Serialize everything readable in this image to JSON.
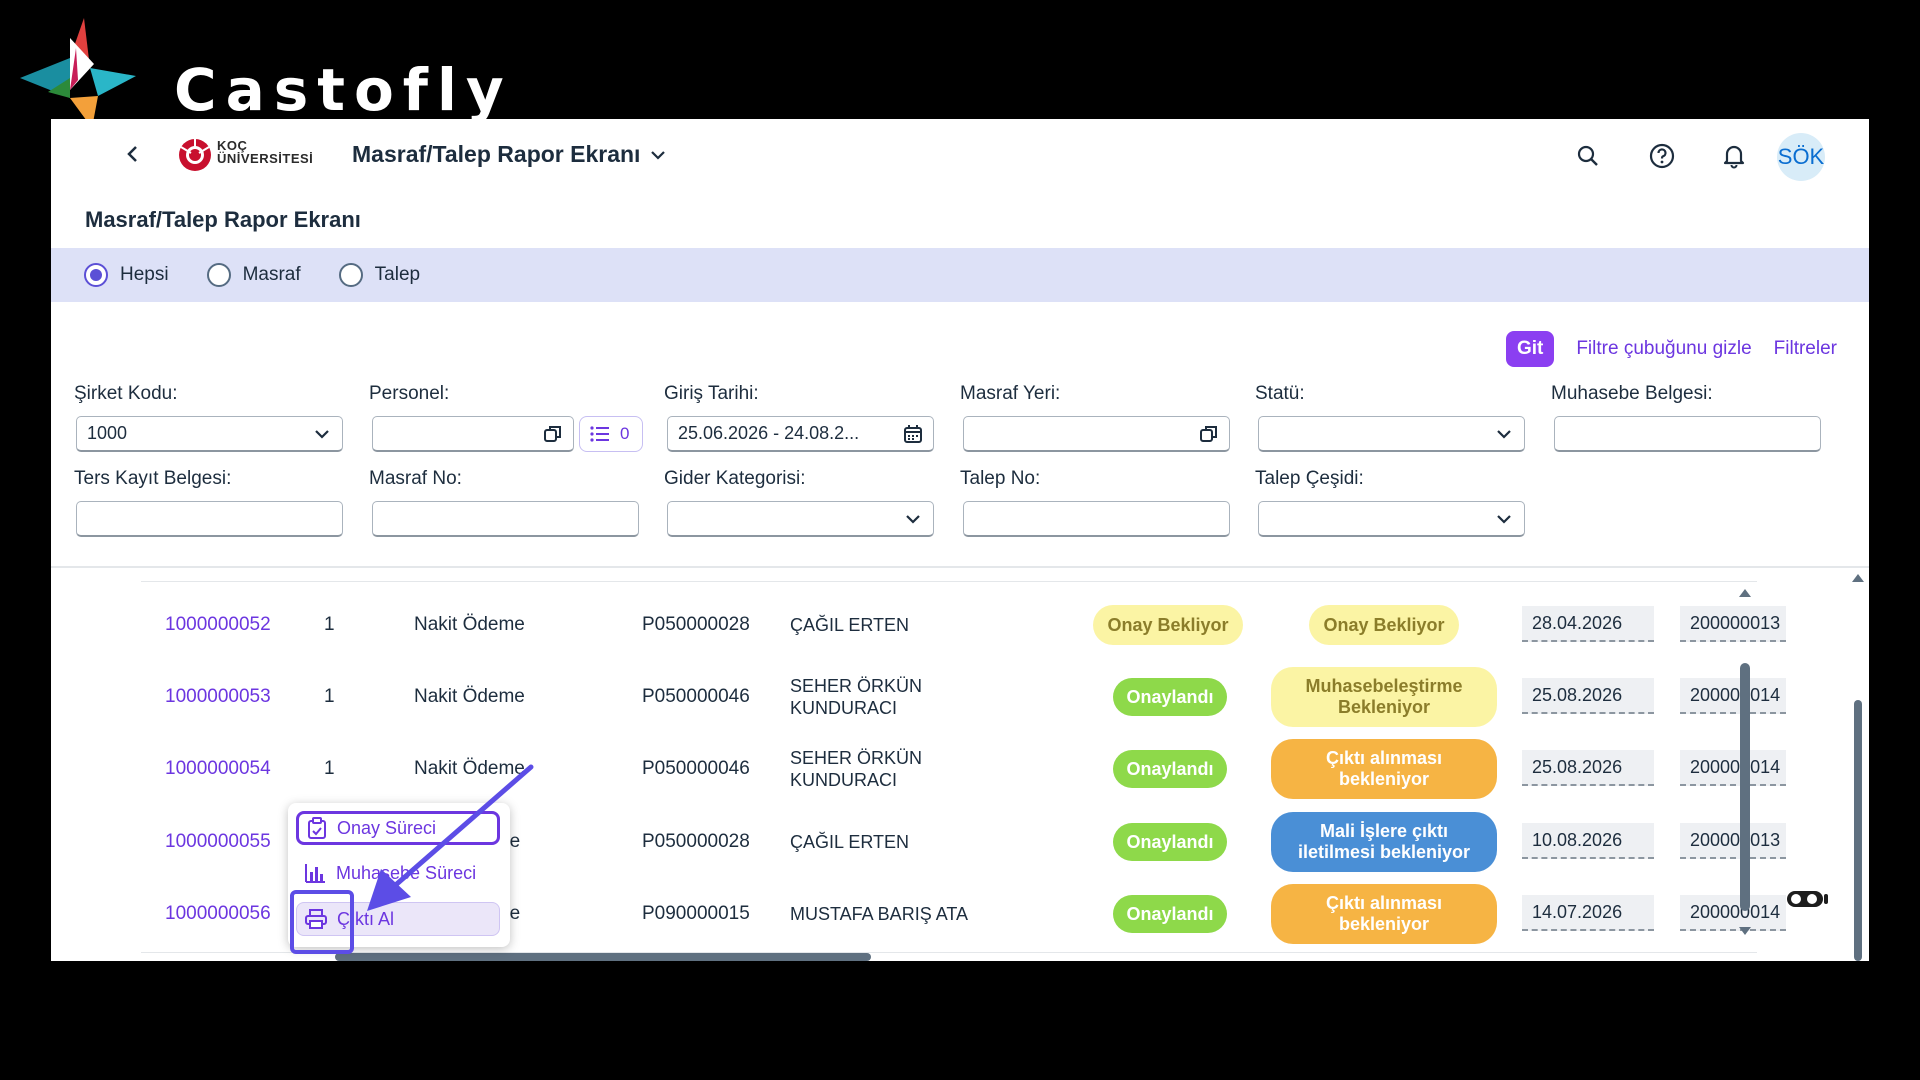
{
  "brand": {
    "name": "Castofly"
  },
  "shell": {
    "logo_line1": "KOÇ",
    "logo_line2": "ÜNİVERSİTESİ",
    "app_title": "Masraf/Talep Rapor Ekranı",
    "avatar": "SÖK"
  },
  "page": {
    "title": "Masraf/Talep Rapor Ekranı"
  },
  "radios": [
    {
      "label": "Hepsi",
      "selected": true
    },
    {
      "label": "Masraf",
      "selected": false
    },
    {
      "label": "Talep",
      "selected": false
    }
  ],
  "filter_actions": {
    "go": "Git",
    "hide": "Filtre çubuğunu gizle",
    "filters": "Filtreler"
  },
  "filters": {
    "company_code": {
      "label": "Şirket Kodu:",
      "value": "1000"
    },
    "personnel": {
      "label": "Personel:",
      "value": "",
      "token_count": "0"
    },
    "entry_date": {
      "label": "Giriş Tarihi:",
      "value": "25.06.2026 - 24.08.2..."
    },
    "cost_center": {
      "label": "Masraf Yeri:",
      "value": ""
    },
    "status": {
      "label": "Statü:",
      "value": ""
    },
    "accounting_doc": {
      "label": "Muhasebe Belgesi:",
      "value": ""
    },
    "reverse_doc": {
      "label": "Ters Kayıt Belgesi:",
      "value": ""
    },
    "expense_no": {
      "label": "Masraf No:",
      "value": ""
    },
    "expense_category": {
      "label": "Gider Kategorisi:",
      "value": ""
    },
    "request_no": {
      "label": "Talep No:",
      "value": ""
    },
    "request_type": {
      "label": "Talep Çeşidi:",
      "value": ""
    }
  },
  "rows": [
    {
      "id": "1000000052",
      "item": "1",
      "payment": "Nakit Ödeme",
      "pernr": "P050000028",
      "name_l1": "ÇAĞIL ERTEN",
      "name_l2": "",
      "status1": "Onay Bekliyor",
      "status1_color": "yellow",
      "status2_l1": "Onay Bekliyor",
      "status2_l2": "",
      "status2_color": "yellow",
      "date": "28.04.2026",
      "doc": "200000013"
    },
    {
      "id": "1000000053",
      "item": "1",
      "payment": "Nakit Ödeme",
      "pernr": "P050000046",
      "name_l1": "SEHER ÖRKÜN",
      "name_l2": "KUNDURACI",
      "status1": "Onaylandı",
      "status1_color": "green",
      "status2_l1": "Muhasebeleştirme",
      "status2_l2": "Bekleniyor",
      "status2_color": "yellow",
      "date": "25.08.2026",
      "doc": "200000014"
    },
    {
      "id": "1000000054",
      "item": "1",
      "payment": "Nakit Ödeme",
      "pernr": "P050000046",
      "name_l1": "SEHER ÖRKÜN",
      "name_l2": "KUNDURACI",
      "status1": "Onaylandı",
      "status1_color": "green",
      "status2_l1": "Çıktı alınması",
      "status2_l2": "bekleniyor",
      "status2_color": "orange",
      "date": "25.08.2026",
      "doc": "200000014"
    },
    {
      "id": "1000000055",
      "item": "",
      "payment": "ne",
      "pernr": "P050000028",
      "name_l1": "ÇAĞIL ERTEN",
      "name_l2": "",
      "status1": "Onaylandı",
      "status1_color": "green",
      "status2_l1": "Mali İşlere çıktı",
      "status2_l2": "iletilmesi bekleniyor",
      "status2_color": "blue",
      "date": "10.08.2026",
      "doc": "200000013"
    },
    {
      "id": "1000000056",
      "item": "",
      "payment": "ne",
      "pernr": "P090000015",
      "name_l1": "MUSTAFA BARIŞ ATA",
      "name_l2": "",
      "status1": "Onaylandı",
      "status1_color": "green",
      "status2_l1": "Çıktı alınması",
      "status2_l2": "bekleniyor",
      "status2_color": "orange",
      "date": "14.07.2026",
      "doc": "200000014"
    }
  ],
  "popover": {
    "items": [
      {
        "label": "Onay Süreci",
        "icon": "clipboard-icon"
      },
      {
        "label": "Muhasebe Süreci",
        "icon": "bar-chart-icon"
      },
      {
        "label": "Çıktı Al",
        "icon": "printer-icon"
      }
    ]
  }
}
